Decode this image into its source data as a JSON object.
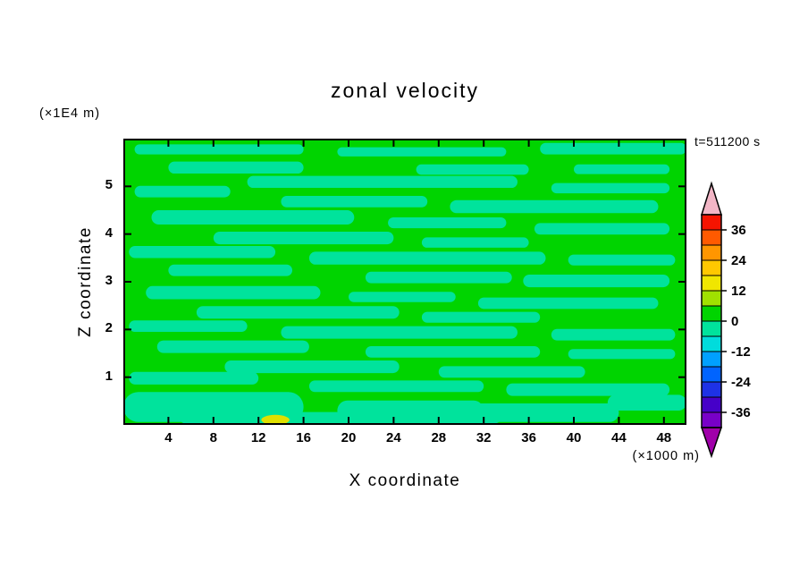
{
  "title": "zonal velocity",
  "annotations": {
    "y_units": "(×1E4 m)",
    "x_units": "(×1000 m)",
    "time_label": "t=511200 s"
  },
  "axes": {
    "x": {
      "label": "X coordinate",
      "range": [
        0,
        50
      ],
      "ticks": [
        4,
        8,
        12,
        16,
        20,
        24,
        28,
        32,
        36,
        40,
        44,
        48
      ]
    },
    "y": {
      "label": "Z coordinate",
      "range": [
        0,
        6
      ],
      "ticks": [
        1,
        2,
        3,
        4,
        5
      ]
    }
  },
  "colorbar": {
    "labels": [
      "36",
      "24",
      "12",
      "0",
      "-12",
      "-24",
      "-36"
    ],
    "top_arrow_color": "#f2b6c6",
    "bottom_arrow_color": "#a000aa",
    "segments": [
      {
        "from": 36,
        "to": 42,
        "color": "#f51400"
      },
      {
        "from": 30,
        "to": 36,
        "color": "#ff5a00"
      },
      {
        "from": 24,
        "to": 30,
        "color": "#ff9600"
      },
      {
        "from": 18,
        "to": 24,
        "color": "#ffc800"
      },
      {
        "from": 12,
        "to": 18,
        "color": "#f0e600"
      },
      {
        "from": 6,
        "to": 12,
        "color": "#a0e100"
      },
      {
        "from": 0,
        "to": 6,
        "color": "#00d400"
      },
      {
        "from": -6,
        "to": 0,
        "color": "#00e39c"
      },
      {
        "from": -12,
        "to": -6,
        "color": "#00dcdc"
      },
      {
        "from": -18,
        "to": -12,
        "color": "#00a0ff"
      },
      {
        "from": -24,
        "to": -18,
        "color": "#0064ff"
      },
      {
        "from": -30,
        "to": -24,
        "color": "#1e32e6"
      },
      {
        "from": -36,
        "to": -30,
        "color": "#4600c8"
      },
      {
        "from": -42,
        "to": -36,
        "color": "#7800c8"
      }
    ]
  },
  "field": {
    "background_color": "#00d400",
    "streak_color": "#00e39c",
    "accent_spot_color": "#e0e000",
    "streaks": [
      [
        0.02,
        0.02,
        0.3,
        0.035
      ],
      [
        0.38,
        0.03,
        0.3,
        0.032
      ],
      [
        0.74,
        0.015,
        0.26,
        0.04
      ],
      [
        0.08,
        0.08,
        0.24,
        0.042
      ],
      [
        0.52,
        0.09,
        0.2,
        0.036
      ],
      [
        0.8,
        0.09,
        0.17,
        0.034
      ],
      [
        0.22,
        0.13,
        0.48,
        0.042
      ],
      [
        0.76,
        0.155,
        0.21,
        0.036
      ],
      [
        0.02,
        0.165,
        0.17,
        0.04
      ],
      [
        0.28,
        0.2,
        0.26,
        0.04
      ],
      [
        0.58,
        0.215,
        0.37,
        0.045
      ],
      [
        0.05,
        0.25,
        0.36,
        0.05
      ],
      [
        0.47,
        0.275,
        0.21,
        0.038
      ],
      [
        0.73,
        0.295,
        0.24,
        0.04
      ],
      [
        0.16,
        0.325,
        0.32,
        0.044
      ],
      [
        0.53,
        0.345,
        0.19,
        0.036
      ],
      [
        0.01,
        0.375,
        0.26,
        0.042
      ],
      [
        0.33,
        0.395,
        0.42,
        0.045
      ],
      [
        0.79,
        0.405,
        0.19,
        0.038
      ],
      [
        0.08,
        0.44,
        0.22,
        0.04
      ],
      [
        0.43,
        0.465,
        0.26,
        0.04
      ],
      [
        0.71,
        0.475,
        0.26,
        0.044
      ],
      [
        0.04,
        0.515,
        0.31,
        0.046
      ],
      [
        0.4,
        0.535,
        0.19,
        0.036
      ],
      [
        0.63,
        0.555,
        0.32,
        0.04
      ],
      [
        0.13,
        0.585,
        0.36,
        0.044
      ],
      [
        0.53,
        0.605,
        0.21,
        0.038
      ],
      [
        0.01,
        0.635,
        0.21,
        0.04
      ],
      [
        0.28,
        0.655,
        0.42,
        0.044
      ],
      [
        0.76,
        0.665,
        0.22,
        0.04
      ],
      [
        0.06,
        0.705,
        0.27,
        0.044
      ],
      [
        0.43,
        0.725,
        0.31,
        0.04
      ],
      [
        0.79,
        0.735,
        0.19,
        0.035
      ],
      [
        0.18,
        0.775,
        0.31,
        0.044
      ],
      [
        0.56,
        0.795,
        0.26,
        0.04
      ],
      [
        0.01,
        0.815,
        0.23,
        0.044
      ],
      [
        0.33,
        0.845,
        0.31,
        0.04
      ],
      [
        0.68,
        0.855,
        0.29,
        0.044
      ],
      [
        0.0,
        0.885,
        0.32,
        0.105
      ],
      [
        0.38,
        0.915,
        0.26,
        0.07
      ],
      [
        0.55,
        0.925,
        0.33,
        0.065
      ],
      [
        0.86,
        0.895,
        0.14,
        0.055
      ],
      [
        0.1,
        0.955,
        0.57,
        0.04
      ]
    ],
    "spots": [
      [
        0.245,
        0.965,
        0.05,
        0.035
      ]
    ]
  },
  "chart_data": {
    "type": "heatmap",
    "subtype": "filled-contour",
    "title": "zonal velocity",
    "xlabel": "X coordinate",
    "ylabel": "Z coordinate",
    "x_units": "(×1000 m)",
    "y_units": "(×1E4 m)",
    "time_annotation": "t=511200 s",
    "x_range": [
      0,
      50
    ],
    "x_ticks": [
      4,
      8,
      12,
      16,
      20,
      24,
      28,
      32,
      36,
      40,
      44,
      48
    ],
    "y_range": [
      0,
      6
    ],
    "y_ticks": [
      1,
      2,
      3,
      4,
      5
    ],
    "contour_interval": 6,
    "contour_levels": [
      -42,
      -36,
      -30,
      -24,
      -18,
      -12,
      -6,
      0,
      6,
      12,
      18,
      24,
      30,
      36,
      42
    ],
    "colorbar_labeled_levels": [
      36,
      24,
      12,
      0,
      -12,
      -24,
      -36
    ],
    "legend_position": "right",
    "grid": false,
    "field_summary": "Velocity field nearly everywhere between -6 and +6: background in the 0..6 green band with horizontal elongated streaks in the -6..0 spring-green band; one small 6..12 yellow patch at the bottom boundary near x=13 (×1000 m)."
  }
}
